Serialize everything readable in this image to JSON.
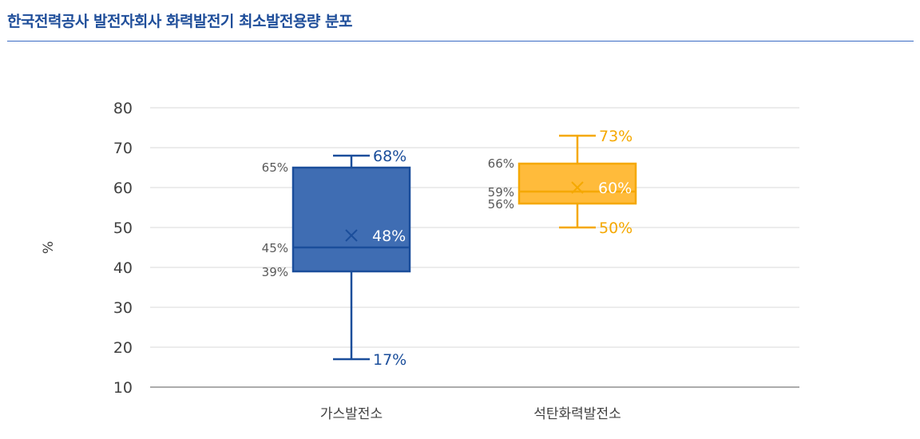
{
  "title": "한국전력공사 발전자회사 화력발전기 최소발전용량 분포",
  "colors": {
    "title": "#1f4e9a",
    "rule": "#3a6bc4",
    "grid": "#d9d9d9",
    "axis": "#595959",
    "tick_text": "#404040",
    "side_label_text": "#595959"
  },
  "chart_data": {
    "type": "boxplot",
    "ylabel": "%",
    "ylim": [
      10,
      80
    ],
    "yticks": [
      10,
      20,
      30,
      40,
      50,
      60,
      70,
      80
    ],
    "grid": true,
    "categories": [
      "가스발전소",
      "석탄화력발전소"
    ],
    "boxes": [
      {
        "category": "가스발전소",
        "min": 17,
        "q1": 39,
        "median": 45,
        "q3": 65,
        "max": 68,
        "mean": 48,
        "color": "#1b4e9b",
        "fill": "#3f6db3",
        "mean_text_color": "#ffffff",
        "labels": {
          "min": "17%",
          "q1": "39%",
          "median": "45%",
          "q3": "65%",
          "max": "68%",
          "mean": "48%"
        }
      },
      {
        "category": "석탄화력발전소",
        "min": 50,
        "q1": 56,
        "median": 59,
        "q3": 66,
        "max": 73,
        "mean": 60,
        "color": "#f5a800",
        "fill": "#ffbb3b",
        "mean_text_color": "#ffffff",
        "labels": {
          "min": "50%",
          "q1": "56%",
          "median": "59%",
          "q3": "66%",
          "max": "73%",
          "mean": "60%"
        }
      }
    ]
  }
}
